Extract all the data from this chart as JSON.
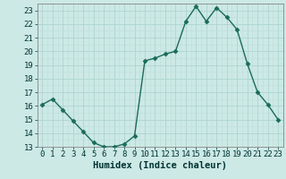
{
  "x": [
    0,
    1,
    2,
    3,
    4,
    5,
    6,
    7,
    8,
    9,
    10,
    11,
    12,
    13,
    14,
    15,
    16,
    17,
    18,
    19,
    20,
    21,
    22,
    23
  ],
  "y": [
    16.1,
    16.5,
    15.7,
    14.9,
    14.1,
    13.3,
    13.0,
    13.0,
    13.2,
    13.8,
    19.3,
    19.5,
    19.8,
    20.0,
    22.2,
    23.3,
    22.2,
    23.2,
    22.5,
    21.6,
    19.1,
    17.0,
    16.1,
    15.0
  ],
  "line_color": "#1a6b5a",
  "marker": "D",
  "marker_size": 2.5,
  "bg_color": "#cce9e5",
  "grid_major_color": "#aed4cf",
  "grid_minor_color": "#bddeda",
  "xlabel": "Humidex (Indice chaleur)",
  "xlim": [
    -0.5,
    23.5
  ],
  "ylim": [
    13,
    23.5
  ],
  "yticks": [
    13,
    14,
    15,
    16,
    17,
    18,
    19,
    20,
    21,
    22,
    23
  ],
  "xticks": [
    0,
    1,
    2,
    3,
    4,
    5,
    6,
    7,
    8,
    9,
    10,
    11,
    12,
    13,
    14,
    15,
    16,
    17,
    18,
    19,
    20,
    21,
    22,
    23
  ],
  "xlabel_fontsize": 7.5,
  "tick_fontsize": 6.5,
  "label_color": "#003333",
  "spine_color": "#888888"
}
